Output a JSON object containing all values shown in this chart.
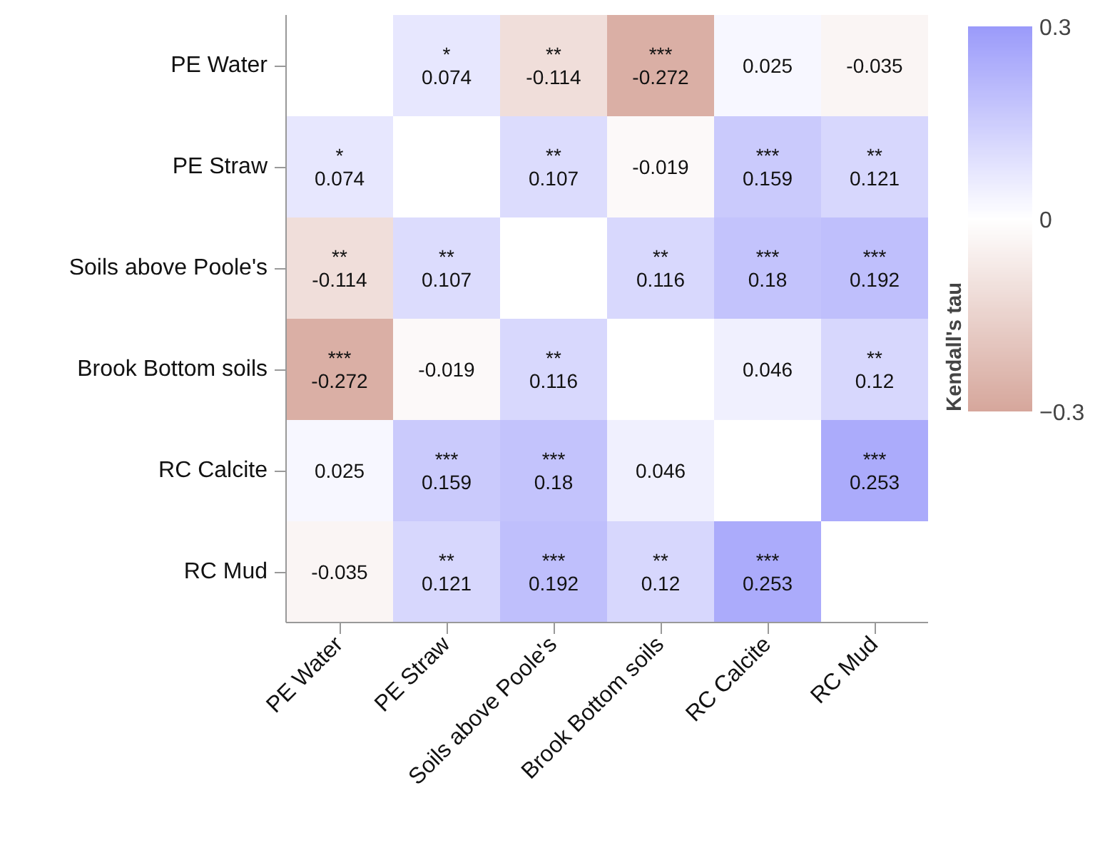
{
  "chart_data": {
    "type": "heatmap",
    "clabel": "Kendall's tau",
    "categories": [
      "PE Water",
      "PE Straw",
      "Soils above Poole's",
      "Brook Bottom soils",
      "RC Calcite",
      "RC Mud"
    ],
    "y_categories": [
      "PE Water",
      "PE Straw",
      "Soils above Poole's",
      "Brook Bottom soils",
      "RC Calcite",
      "RC Mud"
    ],
    "cells": [
      [
        null,
        0.074,
        -0.114,
        -0.272,
        0.025,
        -0.035
      ],
      [
        0.074,
        null,
        0.107,
        -0.019,
        0.159,
        0.121
      ],
      [
        -0.114,
        0.107,
        null,
        0.116,
        0.18,
        0.192
      ],
      [
        -0.272,
        -0.019,
        0.116,
        null,
        0.046,
        0.12
      ],
      [
        0.025,
        0.159,
        0.18,
        0.046,
        null,
        0.253
      ],
      [
        -0.035,
        0.121,
        0.192,
        0.12,
        0.253,
        null
      ]
    ],
    "cell_labels": [
      [
        null,
        "*\n0.074",
        "**\n-0.114",
        "***\n-0.272",
        "0.025",
        "-0.035"
      ],
      [
        "*\n0.074",
        null,
        "**\n0.107",
        "-0.019",
        "***\n0.159",
        "**\n0.121"
      ],
      [
        "**\n-0.114",
        "**\n0.107",
        null,
        "**\n0.116",
        "***\n0.18",
        "***\n0.192"
      ],
      [
        "***\n-0.272",
        "-0.019",
        "**\n0.116",
        null,
        "0.046",
        "**\n0.12"
      ],
      [
        "0.025",
        "***\n0.159",
        "***\n0.18",
        "0.046",
        null,
        "***\n0.253"
      ],
      [
        "-0.035",
        "**\n0.121",
        "***\n0.192",
        "**\n0.12",
        "***\n0.253",
        null
      ]
    ],
    "clim": [
      -0.3,
      0.3
    ],
    "cticks": [
      -0.3,
      0,
      0.3
    ]
  }
}
